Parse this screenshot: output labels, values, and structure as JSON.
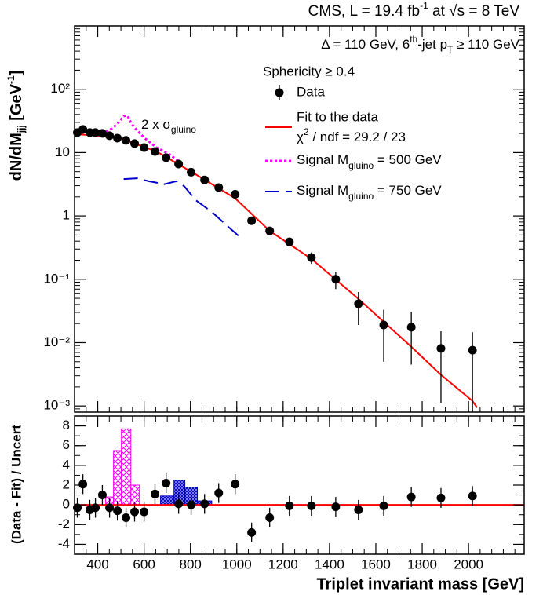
{
  "chart_data": [
    {
      "type": "line",
      "title": [
        "CMS, L = 19.4 fb",
        "-1",
        " at ",
        "√s",
        "  =  8 TeV"
      ],
      "ylabel": [
        "dN/dM",
        "jjj",
        " [GeV",
        "-1",
        "]"
      ],
      "annotations": {
        "selection": [
          "Δ = 110 GeV, 6",
          "th",
          "-jet p",
          "T",
          " ≥ 110 GeV"
        ],
        "sphericity": "Sphericity ≥ 0.4",
        "signal_scale": [
          "2 x σ",
          "gluino"
        ]
      },
      "fit_stat": [
        "χ",
        "2",
        " / ndf = 29.2 / 23"
      ],
      "log_y": true,
      "show_xtick_labels": false,
      "legend": "upper right",
      "xlim": [
        300,
        2240
      ],
      "xticks": [
        400,
        600,
        800,
        1000,
        1200,
        1400,
        1600,
        1800,
        2000
      ],
      "ylim": [
        0.0008,
        1000
      ],
      "yticks": [
        {
          "value": 0.001,
          "label": "10⁻³"
        },
        {
          "value": 0.01,
          "label": "10⁻²"
        },
        {
          "value": 0.1,
          "label": "10⁻¹"
        },
        1,
        10,
        {
          "value": 100,
          "label": "10²"
        }
      ],
      "series": [
        {
          "name": "Data",
          "color": "#000000",
          "style": "points",
          "x": [
            312,
            336,
            366,
            390,
            420,
            451,
            485,
            522,
            559,
            600,
            647,
            695,
            749,
            803,
            861,
            922,
            993,
            1064,
            1142,
            1227,
            1322,
            1427,
            1525,
            1634,
            1753,
            1881,
            2017
          ],
          "values": [
            20.7,
            23.2,
            20.7,
            20.7,
            20.1,
            18.5,
            16.9,
            15.6,
            13.9,
            12.0,
            10.4,
            8.3,
            6.6,
            4.9,
            3.7,
            2.8,
            2.2,
            0.84,
            0.58,
            0.39,
            0.22,
            0.1,
            0.041,
            0.019,
            0.0175,
            0.0081,
            0.0076
          ],
          "errors": [
            0.5,
            0.5,
            0.5,
            0.5,
            0.5,
            0.45,
            0.4,
            0.4,
            0.35,
            0.3,
            0.3,
            0.25,
            0.2,
            0.18,
            0.15,
            0.12,
            0.1,
            0.06,
            0.05,
            0.04,
            0.045,
            0.03,
            0.022,
            0.014,
            0.013,
            0.007,
            0.007
          ]
        },
        {
          "name": "Fit to the data",
          "color": "#ff0000",
          "style": "solid",
          "x": [
            312,
            485,
            654,
            824,
            993,
            1142,
            1322,
            1525,
            1753,
            1881,
            2017,
            2037
          ],
          "values": [
            19.5,
            17.4,
            10.4,
            4.5,
            1.9,
            0.58,
            0.21,
            0.049,
            0.0086,
            0.0031,
            0.0012,
            0.00094
          ]
        },
        {
          "name": [
            "Signal M",
            "gluino",
            " = 500 GeV"
          ],
          "color": "#ff00ff",
          "style": "dotted",
          "x": [
            417,
            451,
            485,
            512,
            529,
            546,
            569,
            603,
            654,
            705,
            762
          ],
          "values": [
            20.1,
            22.5,
            28.4,
            37.8,
            37.8,
            28.4,
            22.5,
            16.9,
            12.0,
            9.6,
            6.8
          ]
        },
        {
          "name": [
            "Signal M",
            "gluino",
            " = 750 GeV"
          ],
          "color": "#0000cc",
          "style": "dashed",
          "x": [
            512,
            569,
            620,
            688,
            739,
            773,
            824,
            892,
            960,
            1021
          ],
          "values": [
            3.82,
            3.93,
            3.53,
            3.18,
            3.53,
            2.94,
            1.76,
            1.16,
            0.69,
            0.44
          ]
        }
      ]
    },
    {
      "type": "scatter",
      "xlabel": "Triplet invariant mass [GeV]",
      "ylabel": "(Data - Fit) / Uncert",
      "log_y": false,
      "show_xtick_labels": true,
      "xlim": [
        300,
        2240
      ],
      "xticks": [
        400,
        600,
        800,
        1000,
        1200,
        1400,
        1600,
        1800,
        2000
      ],
      "ylim": [
        -5,
        9
      ],
      "yticks": [
        -4,
        -2,
        0,
        2,
        4,
        6,
        8
      ],
      "fit_line": {
        "color": "#ff0000",
        "value": 0
      },
      "histograms": [
        {
          "color": "#ff00ff",
          "bins": [
            434,
            468,
            502,
            543,
            580
          ],
          "values": [
            0.8,
            5.5,
            7.7,
            2.0
          ]
        },
        {
          "color": "#0000cc",
          "bins": [
            671,
            729,
            776,
            830,
            892
          ],
          "values": [
            0.9,
            2.5,
            1.8,
            0.4
          ]
        }
      ],
      "series": [
        {
          "color": "#000000",
          "style": "points",
          "x": [
            312,
            336,
            366,
            390,
            420,
            451,
            485,
            522,
            559,
            600,
            647,
            695,
            749,
            803,
            861,
            922,
            993,
            1064,
            1142,
            1227,
            1322,
            1427,
            1525,
            1634,
            1753,
            1881,
            2017
          ],
          "values": [
            -0.3,
            2.1,
            -0.5,
            -0.3,
            1.0,
            -0.3,
            -0.6,
            -1.3,
            -0.7,
            -0.7,
            1.1,
            2.2,
            0.1,
            0,
            0.1,
            1.2,
            2.1,
            -2.8,
            -1.3,
            -0.1,
            -0.1,
            -0.2,
            -0.5,
            -0.1,
            0.8,
            0.7,
            0.9
          ],
          "errors": [
            1,
            1,
            1,
            1,
            1,
            1,
            1,
            1,
            1,
            1,
            1,
            1,
            1,
            1,
            1,
            1,
            1,
            1,
            1,
            1,
            1,
            1,
            1,
            1,
            1,
            1,
            1
          ]
        }
      ]
    }
  ]
}
